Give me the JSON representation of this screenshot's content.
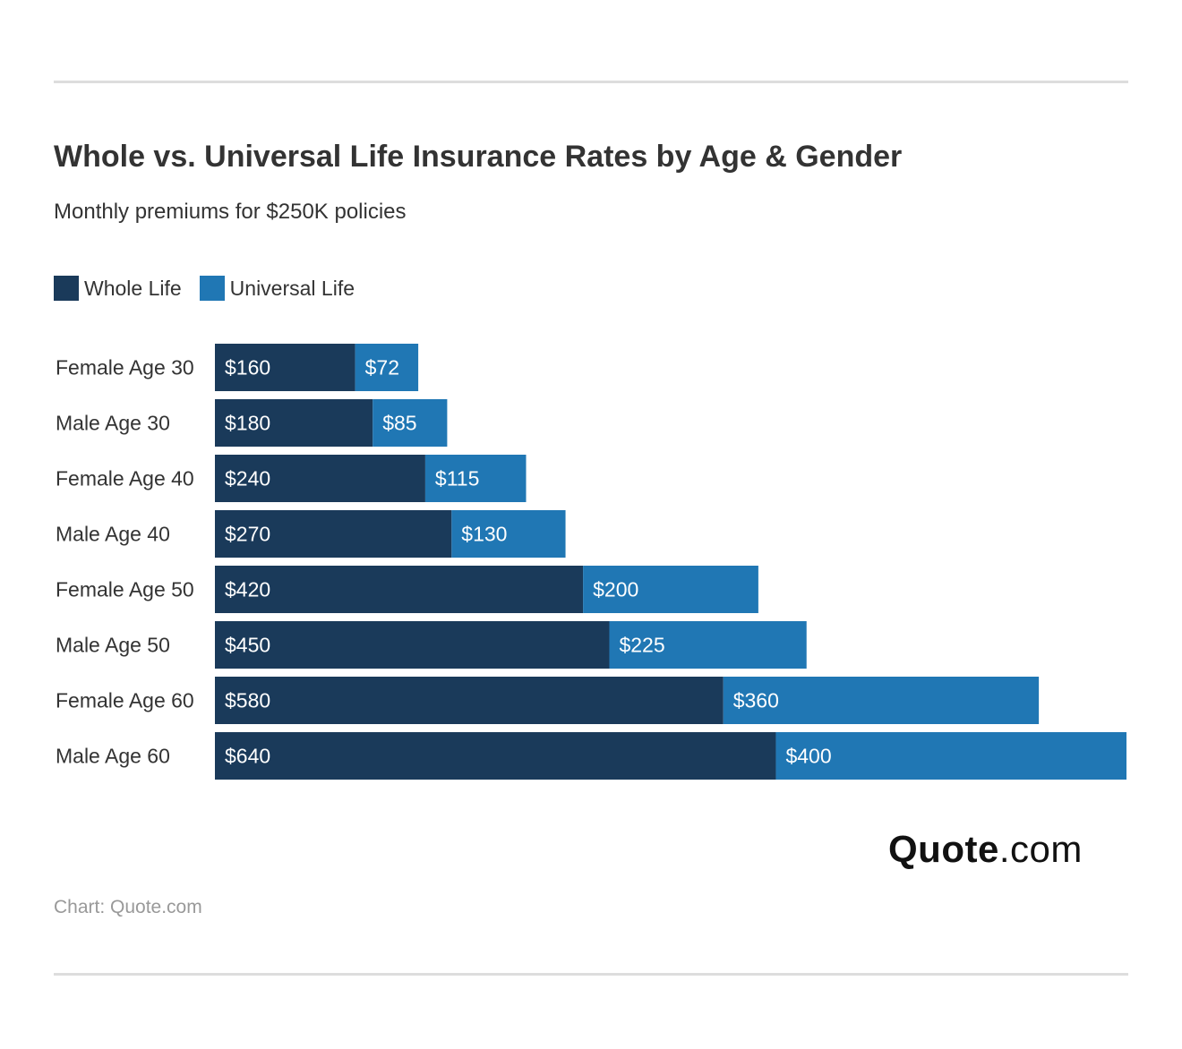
{
  "header": {
    "title": "Whole vs. Universal Life Insurance Rates by Age & Gender",
    "subtitle": "Monthly premiums for $250K policies"
  },
  "legend": {
    "items": [
      {
        "label": "Whole Life",
        "color": "#1a3a5a"
      },
      {
        "label": "Universal Life",
        "color": "#2077b4"
      }
    ]
  },
  "chart_data": {
    "type": "bar",
    "orientation": "horizontal",
    "stacked": true,
    "categories": [
      "Female Age 30",
      "Male Age 30",
      "Female Age 40",
      "Male Age 40",
      "Female Age 50",
      "Male Age 50",
      "Female Age 60",
      "Male Age 60"
    ],
    "series": [
      {
        "name": "Whole Life",
        "color": "#1a3a5a",
        "values": [
          160,
          180,
          240,
          270,
          420,
          450,
          580,
          640
        ],
        "labels": [
          "$160",
          "$180",
          "$240",
          "$270",
          "$420",
          "$450",
          "$580",
          "$640"
        ]
      },
      {
        "name": "Universal Life",
        "color": "#2077b4",
        "values": [
          72,
          85,
          115,
          130,
          200,
          225,
          360,
          400
        ],
        "labels": [
          "$72",
          "$85",
          "$115",
          "$130",
          "$200",
          "$225",
          "$360",
          "$400"
        ]
      }
    ],
    "xlim": [
      0,
      1040
    ],
    "grid": false,
    "legend_position": "top-left"
  },
  "branding": {
    "logo_bold": "Quote",
    "logo_light": ".com"
  },
  "footer": {
    "source": "Chart: Quote.com"
  }
}
